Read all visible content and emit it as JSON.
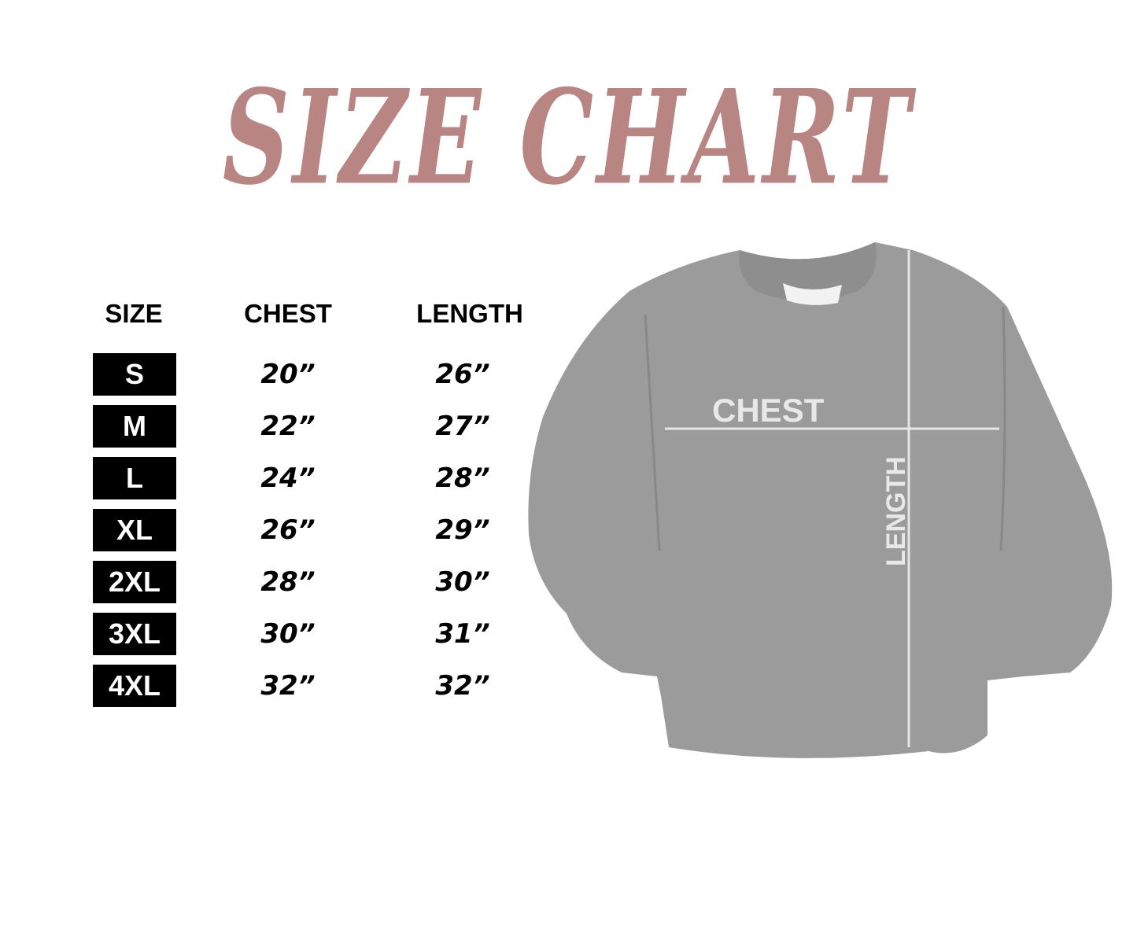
{
  "title": "SIZE CHART",
  "table": {
    "headers": [
      "SIZE",
      "CHEST",
      "LENGTH"
    ],
    "rows": [
      {
        "size": "S",
        "chest": "20”",
        "length": "26”"
      },
      {
        "size": "M",
        "chest": "22”",
        "length": "27”"
      },
      {
        "size": "L",
        "chest": "24”",
        "length": "28”"
      },
      {
        "size": "XL",
        "chest": "26”",
        "length": "29”"
      },
      {
        "size": "2XL",
        "chest": "28”",
        "length": "30”"
      },
      {
        "size": "3XL",
        "chest": "30”",
        "length": "31”"
      },
      {
        "size": "4XL",
        "chest": "32”",
        "length": "32”"
      }
    ]
  },
  "diagram": {
    "chest_label": "CHEST",
    "length_label": "LENGTH"
  },
  "colors": {
    "title": "#b88582",
    "shirt": "#9a9a9a",
    "size_box": "#000000"
  }
}
